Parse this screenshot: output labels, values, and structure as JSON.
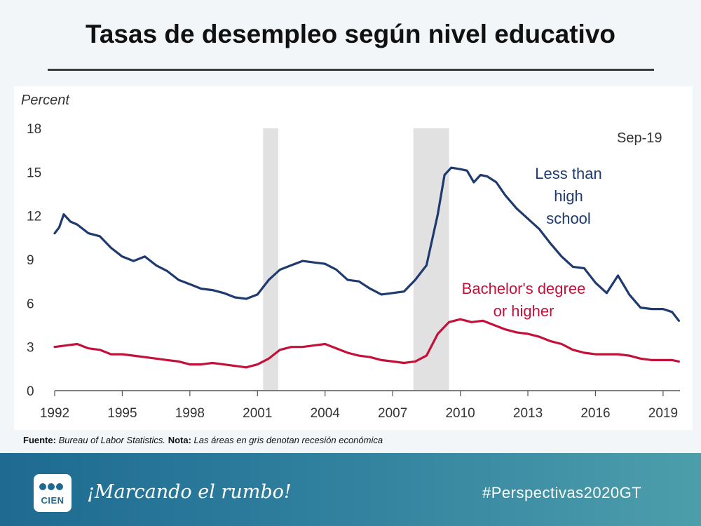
{
  "slide": {
    "title": "Tasas de desempleo según nivel educativo",
    "source_label": "Fuente:",
    "source_text": "Bureau of Labor Statistics.",
    "note_label": "Nota:",
    "note_text": "Las áreas en gris denotan recesión económica"
  },
  "footer": {
    "logo_text": "CIEN",
    "slogan": "¡Marcando el rumbo!",
    "hashtag": "#Perspectivas2020GT"
  },
  "colors": {
    "less_than_hs": "#1f3a6e",
    "bachelors": "#c3113a",
    "recession": "#e1e1e1",
    "footer": "#2f7f9e"
  },
  "chart_data": {
    "type": "line",
    "ylabel": "Percent",
    "annotation": "Sep-19",
    "ylim": [
      0,
      18
    ],
    "yticks": [
      "0",
      "3",
      "6",
      "9",
      "12",
      "15",
      "18"
    ],
    "xlim": [
      1992,
      2019.75
    ],
    "xticks": [
      "1992",
      "1995",
      "1998",
      "2001",
      "2004",
      "2007",
      "2010",
      "2013",
      "2016",
      "2019"
    ],
    "recessions": [
      [
        2001.25,
        2001.92
      ],
      [
        2007.92,
        2009.5
      ]
    ],
    "series": [
      {
        "name": "Less than high school",
        "label_lines": [
          "Less than high",
          "school"
        ],
        "x": [
          1992.0,
          1992.2,
          1992.4,
          1992.7,
          1993.0,
          1993.5,
          1994.0,
          1994.5,
          1995.0,
          1995.5,
          1996.0,
          1996.5,
          1997.0,
          1997.5,
          1998.0,
          1998.5,
          1999.0,
          1999.5,
          2000.0,
          2000.5,
          2001.0,
          2001.5,
          2002.0,
          2002.5,
          2003.0,
          2003.5,
          2004.0,
          2004.5,
          2005.0,
          2005.5,
          2006.0,
          2006.5,
          2007.0,
          2007.5,
          2008.0,
          2008.5,
          2009.0,
          2009.3,
          2009.6,
          2010.0,
          2010.3,
          2010.6,
          2010.9,
          2011.2,
          2011.6,
          2012.0,
          2012.5,
          2013.0,
          2013.5,
          2014.0,
          2014.5,
          2015.0,
          2015.5,
          2016.0,
          2016.5,
          2017.0,
          2017.5,
          2018.0,
          2018.5,
          2019.0,
          2019.4,
          2019.7
        ],
        "values": [
          10.8,
          11.2,
          12.1,
          11.6,
          11.4,
          10.8,
          10.6,
          9.8,
          9.2,
          8.9,
          9.2,
          8.6,
          8.2,
          7.6,
          7.3,
          7.0,
          6.9,
          6.7,
          6.4,
          6.3,
          6.6,
          7.6,
          8.3,
          8.6,
          8.9,
          8.8,
          8.7,
          8.3,
          7.6,
          7.5,
          7.0,
          6.6,
          6.7,
          6.8,
          7.6,
          8.6,
          12.1,
          14.8,
          15.3,
          15.2,
          15.1,
          14.3,
          14.8,
          14.7,
          14.3,
          13.4,
          12.5,
          11.8,
          11.1,
          10.1,
          9.2,
          8.5,
          8.4,
          7.4,
          6.7,
          7.9,
          6.6,
          5.7,
          5.6,
          5.6,
          5.4,
          4.8
        ]
      },
      {
        "name": "Bachelor's degree or higher",
        "label_lines": [
          "Bachelor's degree",
          "or higher"
        ],
        "x": [
          1992.0,
          1992.5,
          1993.0,
          1993.5,
          1994.0,
          1994.5,
          1995.0,
          1995.5,
          1996.0,
          1996.5,
          1997.0,
          1997.5,
          1998.0,
          1998.5,
          1999.0,
          1999.5,
          2000.0,
          2000.5,
          2001.0,
          2001.5,
          2002.0,
          2002.5,
          2003.0,
          2003.5,
          2004.0,
          2004.5,
          2005.0,
          2005.5,
          2006.0,
          2006.5,
          2007.0,
          2007.5,
          2008.0,
          2008.5,
          2009.0,
          2009.5,
          2010.0,
          2010.5,
          2011.0,
          2011.5,
          2012.0,
          2012.5,
          2013.0,
          2013.5,
          2014.0,
          2014.5,
          2015.0,
          2015.5,
          2016.0,
          2016.5,
          2017.0,
          2017.5,
          2018.0,
          2018.5,
          2019.0,
          2019.4,
          2019.7
        ],
        "values": [
          3.0,
          3.1,
          3.2,
          2.9,
          2.8,
          2.5,
          2.5,
          2.4,
          2.3,
          2.2,
          2.1,
          2.0,
          1.8,
          1.8,
          1.9,
          1.8,
          1.7,
          1.6,
          1.8,
          2.2,
          2.8,
          3.0,
          3.0,
          3.1,
          3.2,
          2.9,
          2.6,
          2.4,
          2.3,
          2.1,
          2.0,
          1.9,
          2.0,
          2.4,
          3.9,
          4.7,
          4.9,
          4.7,
          4.8,
          4.5,
          4.2,
          4.0,
          3.9,
          3.7,
          3.4,
          3.2,
          2.8,
          2.6,
          2.5,
          2.5,
          2.5,
          2.4,
          2.2,
          2.1,
          2.1,
          2.1,
          2.0
        ]
      }
    ]
  }
}
